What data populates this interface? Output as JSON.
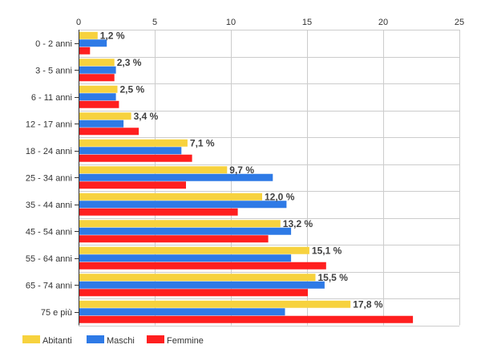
{
  "chart_data": {
    "type": "bar",
    "orientation": "horizontal",
    "title": "",
    "xlabel": "",
    "ylabel": "",
    "xlim": [
      0,
      25
    ],
    "x_ticks": [
      0,
      5,
      10,
      15,
      20,
      25
    ],
    "x_tick_labels": [
      "0",
      "5",
      "10",
      "15",
      "20",
      "25"
    ],
    "x_axis_position": "top",
    "grid": true,
    "legend_position": "bottom-left",
    "categories": [
      "0 - 2 anni",
      "3 - 5 anni",
      "6 - 11 anni",
      "12 - 17 anni",
      "18 - 24 anni",
      "25 - 34 anni",
      "35 - 44 anni",
      "45 - 54 anni",
      "55 - 64 anni",
      "65 - 74 anni",
      "75 e più"
    ],
    "series": [
      {
        "name": "Abitanti",
        "color": "#f7d23e",
        "values": [
          1.2,
          2.3,
          2.5,
          3.4,
          7.1,
          9.7,
          12.0,
          13.2,
          15.1,
          15.5,
          17.8
        ],
        "data_labels": [
          "1,2 %",
          "2,3 %",
          "2,5 %",
          "3,4 %",
          "7,1 %",
          "9,7 %",
          "12,0 %",
          "13,2 %",
          "15,1 %",
          "15,5 %",
          "17,8 %"
        ]
      },
      {
        "name": "Maschi",
        "color": "#2e7ae6",
        "values": [
          1.8,
          2.4,
          2.4,
          2.9,
          6.7,
          12.7,
          13.6,
          13.9,
          13.9,
          16.1,
          13.5
        ]
      },
      {
        "name": "Femmine",
        "color": "#ff1f1f",
        "values": [
          0.7,
          2.3,
          2.6,
          3.9,
          7.4,
          7.0,
          10.4,
          12.4,
          16.2,
          15.0,
          21.9
        ]
      }
    ]
  }
}
